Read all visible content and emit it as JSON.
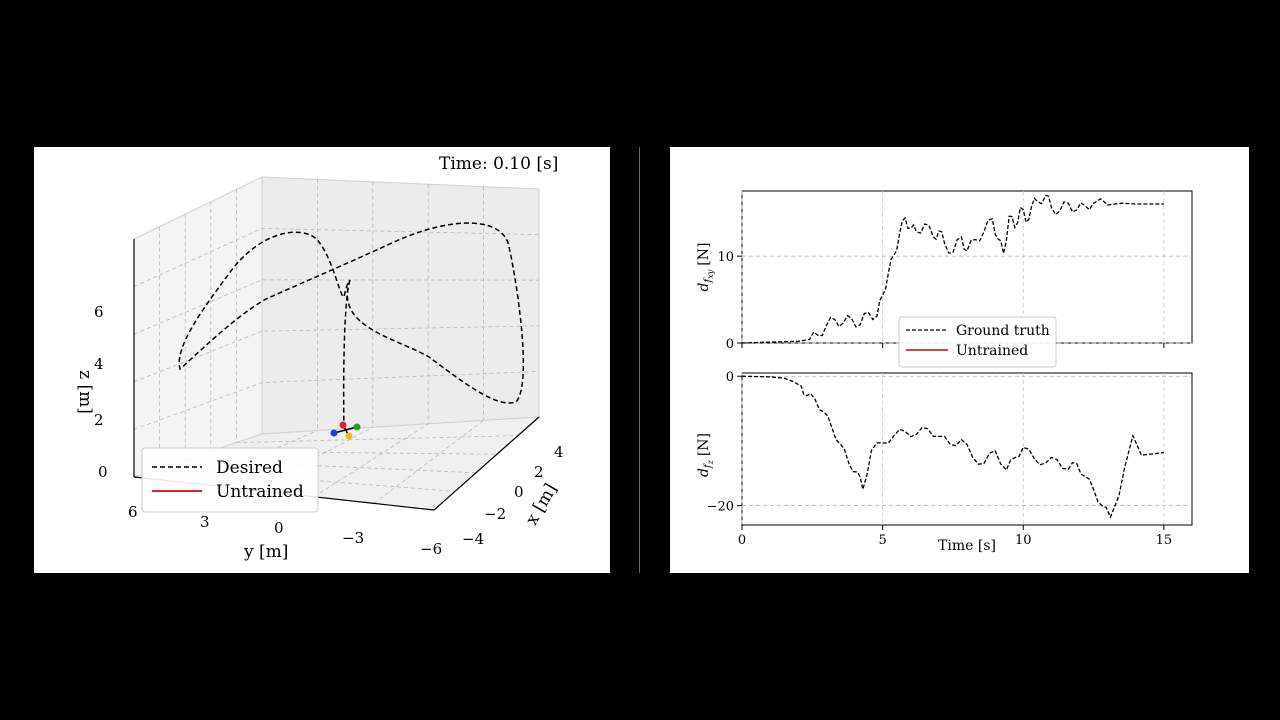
{
  "left_plot": {
    "time_label": "Time: 0.10 [s]",
    "xlabel": "x [m]",
    "ylabel": "y [m]",
    "zlabel": "z [m]",
    "x_ticks": [
      "4",
      "2",
      "0",
      "−2",
      "−4"
    ],
    "y_ticks": [
      "6",
      "3",
      "0",
      "−3",
      "−6"
    ],
    "z_ticks": [
      "0",
      "2",
      "4",
      "6"
    ],
    "legend": [
      {
        "label": "Desired",
        "style": "dashed",
        "color": "#000000"
      },
      {
        "label": "Untrained",
        "style": "solid",
        "color": "#d62728"
      }
    ],
    "quadrotor_colors": [
      "#d62728",
      "#1f3fd6",
      "#2ca02c",
      "#f2b705"
    ]
  },
  "chart_data": [
    {
      "type": "line",
      "subplot": "top",
      "ylabel": "d_{f_{xy}} [N]",
      "ylabel_main": "d",
      "ylabel_sub": "f",
      "ylabel_subsub": "xy",
      "ylabel_unit": "[N]",
      "xlim": [
        0,
        16
      ],
      "ylim": [
        0,
        17.5
      ],
      "y_ticks": [
        "0",
        "10"
      ],
      "y_tick_values": [
        0,
        10
      ],
      "x_tick_values": [
        0,
        5,
        10,
        15
      ],
      "grid": true,
      "legend_position": "lower-center",
      "series": [
        {
          "name": "Ground truth",
          "style": "dashed",
          "color": "#000000",
          "x": [
            0,
            1,
            2,
            2.4,
            2.7,
            3.0,
            3.3,
            3.6,
            3.9,
            4.2,
            4.5,
            4.8,
            5.0,
            5.2,
            5.4,
            5.6,
            5.8,
            6.0,
            6.2,
            6.5,
            6.8,
            7.0,
            7.2,
            7.5,
            7.8,
            8.0,
            8.3,
            8.6,
            8.9,
            9.1,
            9.3,
            9.5,
            9.7,
            9.9,
            10.1,
            10.3,
            10.5,
            10.8,
            11.0,
            11.3,
            11.6,
            11.9,
            12.2,
            12.5,
            13,
            13.5,
            14,
            14.5,
            15
          ],
          "values": [
            0,
            0.1,
            0.2,
            0.4,
            0.9,
            2.0,
            2.7,
            2.3,
            2.8,
            2.1,
            3.5,
            3.1,
            5.5,
            8.0,
            10.1,
            12.5,
            14.4,
            13.2,
            12.8,
            13.7,
            12.2,
            12.9,
            11.5,
            10.4,
            12.2,
            10.6,
            11.9,
            12.8,
            14.3,
            12.0,
            10.3,
            14.6,
            13.3,
            15.6,
            13.9,
            15.8,
            16.3,
            17.0,
            15.6,
            15.2,
            16.1,
            15.3,
            15.8,
            16.1,
            15.9,
            16.1,
            16.0,
            16.0,
            16.0
          ]
        },
        {
          "name": "Untrained",
          "style": "solid",
          "color": "#d62728",
          "x": [],
          "values": []
        }
      ]
    },
    {
      "type": "line",
      "subplot": "bottom",
      "ylabel": "d_{f_z} [N]",
      "ylabel_main": "d",
      "ylabel_sub": "f",
      "ylabel_subsub": "z",
      "ylabel_unit": "[N]",
      "xlabel": "Time [s]",
      "xlim": [
        0,
        16
      ],
      "ylim": [
        -23,
        0.5
      ],
      "y_ticks": [
        "0",
        "−20"
      ],
      "y_tick_values": [
        0,
        -20
      ],
      "x_ticks": [
        "0",
        "5",
        "10",
        "15"
      ],
      "x_tick_values": [
        0,
        5,
        10,
        15
      ],
      "grid": true,
      "series": [
        {
          "name": "Ground truth",
          "style": "dashed",
          "color": "#000000",
          "x": [
            0,
            1,
            1.5,
            1.8,
            2.1,
            2.3,
            2.6,
            2.9,
            3.2,
            3.5,
            3.8,
            4.1,
            4.3,
            4.6,
            5.0,
            5.4,
            5.8,
            6.2,
            6.6,
            7.0,
            7.4,
            7.8,
            8.2,
            8.6,
            9.0,
            9.4,
            9.7,
            10.0,
            10.4,
            10.8,
            11.2,
            11.6,
            11.9,
            12.2,
            12.5,
            12.8,
            13.1,
            13.4,
            13.6,
            13.9,
            14.2,
            14.6,
            15
          ],
          "values": [
            0,
            -0.1,
            -0.3,
            -0.8,
            -1.5,
            -3.0,
            -3.6,
            -5.5,
            -8.0,
            -10.5,
            -13.5,
            -14.8,
            -17.5,
            -11.5,
            -10.3,
            -9.2,
            -8.5,
            -9.0,
            -8.1,
            -9.3,
            -10.5,
            -9.8,
            -12.5,
            -13.5,
            -11.5,
            -14.5,
            -12.6,
            -11.0,
            -12.8,
            -13.4,
            -12.9,
            -14.4,
            -13.5,
            -15.5,
            -17.5,
            -20.0,
            -21.8,
            -18.5,
            -14.2,
            -9.2,
            -12.2,
            -12.0,
            -11.8
          ]
        },
        {
          "name": "Untrained",
          "style": "solid",
          "color": "#d62728",
          "x": [],
          "values": []
        }
      ]
    }
  ]
}
